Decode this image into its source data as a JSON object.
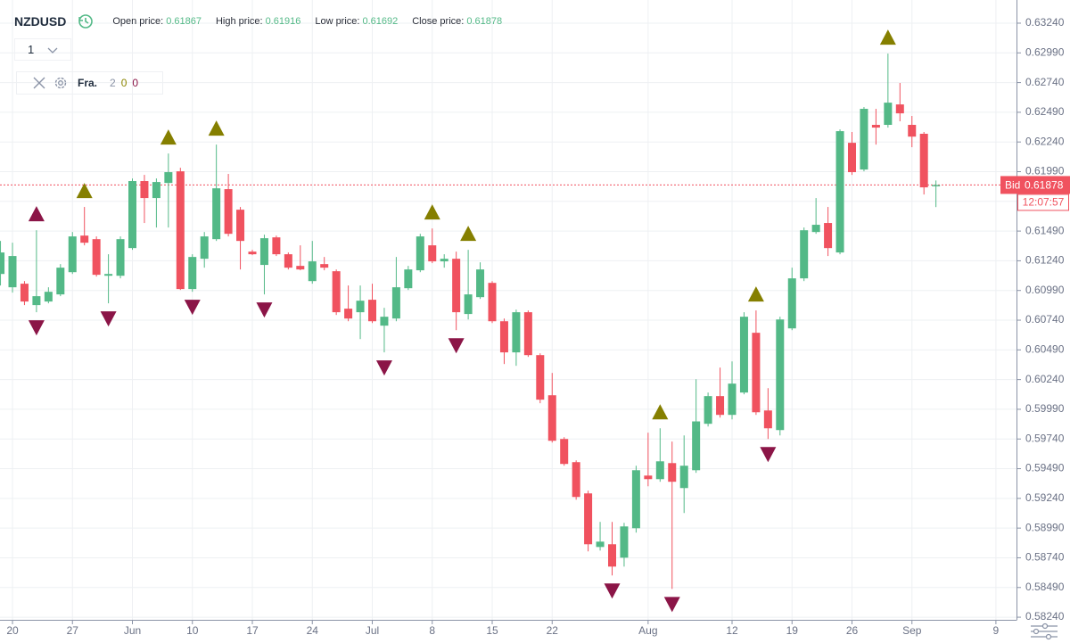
{
  "header": {
    "symbol": "NZDUSD",
    "open_label": "Open price:",
    "high_label": "High price:",
    "low_label": "Low price:",
    "close_label": "Close price:",
    "interval": "1"
  },
  "indicator": {
    "name": "Fra.",
    "params": [
      2,
      0,
      0
    ]
  },
  "chart_data": {
    "type": "candlestick",
    "categories": [
      null,
      "20",
      null,
      null,
      null,
      null,
      "27",
      null,
      null,
      null,
      null,
      "Jun",
      null,
      null,
      null,
      null,
      "10",
      null,
      null,
      null,
      null,
      "17",
      null,
      null,
      null,
      null,
      "24",
      null,
      null,
      null,
      null,
      "Jul",
      null,
      null,
      null,
      null,
      "8",
      null,
      null,
      null,
      null,
      "15",
      null,
      null,
      null,
      null,
      "22",
      null,
      null,
      null,
      null,
      null,
      null,
      null,
      "Aug",
      null,
      null,
      null,
      null,
      null,
      null,
      "12",
      null,
      null,
      null,
      null,
      "19",
      null,
      null,
      null,
      null,
      "26",
      null,
      null,
      null,
      null,
      "Sep",
      null,
      null,
      null,
      null,
      null,
      null,
      "9"
    ],
    "ohlc": [
      [
        0.61129,
        0.61407,
        0.61032,
        0.6131
      ],
      [
        0.61017,
        0.61392,
        0.60972,
        0.6128
      ],
      [
        0.61047,
        0.61069,
        0.60867,
        0.60897
      ],
      [
        0.60867,
        0.61497,
        0.60807,
        0.60942
      ],
      [
        0.60897,
        0.61017,
        0.60882,
        0.60979
      ],
      [
        0.60957,
        0.61212,
        0.60942,
        0.61182
      ],
      [
        0.61144,
        0.61482,
        0.61129,
        0.61445
      ],
      [
        0.61452,
        0.61693,
        0.6137,
        0.61392
      ],
      [
        0.61422,
        0.61445,
        0.61107,
        0.61122
      ],
      [
        0.61114,
        0.61295,
        0.60882,
        0.61129
      ],
      [
        0.61114,
        0.61445,
        0.61092,
        0.61422
      ],
      [
        0.61347,
        0.61933,
        0.61332,
        0.61911
      ],
      [
        0.61911,
        0.61963,
        0.61558,
        0.61768
      ],
      [
        0.61768,
        0.61933,
        0.6152,
        0.61903
      ],
      [
        0.61895,
        0.62143,
        0.6152,
        0.61986
      ],
      [
        0.61993,
        0.62023,
        0.60994,
        0.61002
      ],
      [
        0.61002,
        0.61295,
        0.60979,
        0.61272
      ],
      [
        0.61257,
        0.61482,
        0.61182,
        0.61445
      ],
      [
        0.61422,
        0.62218,
        0.61407,
        0.6185
      ],
      [
        0.61843,
        0.61971,
        0.61445,
        0.61467
      ],
      [
        0.6167,
        0.61693,
        0.61167,
        0.61407
      ],
      [
        0.61317,
        0.61332,
        0.61287,
        0.61295
      ],
      [
        0.61205,
        0.6146,
        0.60957,
        0.6143
      ],
      [
        0.61437,
        0.61452,
        0.6128,
        0.61295
      ],
      [
        0.61295,
        0.6131,
        0.61167,
        0.61182
      ],
      [
        0.61197,
        0.6137,
        0.6116,
        0.61167
      ],
      [
        0.61069,
        0.61407,
        0.61047,
        0.61235
      ],
      [
        0.61212,
        0.61272,
        0.6116,
        0.61182
      ],
      [
        0.61152,
        0.61167,
        0.60784,
        0.60807
      ],
      [
        0.60837,
        0.61032,
        0.60731,
        0.60754
      ],
      [
        0.60807,
        0.61032,
        0.60581,
        0.60904
      ],
      [
        0.60912,
        0.61047,
        0.60716,
        0.60731
      ],
      [
        0.60694,
        0.60844,
        0.60469,
        0.60769
      ],
      [
        0.60754,
        0.61272,
        0.60731,
        0.61017
      ],
      [
        0.61009,
        0.61197,
        0.60994,
        0.61167
      ],
      [
        0.6116,
        0.61467,
        0.61144,
        0.61445
      ],
      [
        0.6137,
        0.61512,
        0.6122,
        0.61235
      ],
      [
        0.61235,
        0.61295,
        0.61182,
        0.61257
      ],
      [
        0.61257,
        0.61317,
        0.60656,
        0.60807
      ],
      [
        0.60792,
        0.61332,
        0.60746,
        0.60957
      ],
      [
        0.60934,
        0.61227,
        0.60919,
        0.61167
      ],
      [
        0.61054,
        0.61069,
        0.60716,
        0.60731
      ],
      [
        0.60731,
        0.60754,
        0.60371,
        0.60469
      ],
      [
        0.60469,
        0.60829,
        0.60356,
        0.60807
      ],
      [
        0.60807,
        0.60822,
        0.60431,
        0.60446
      ],
      [
        0.60446,
        0.60461,
        0.60041,
        0.60071
      ],
      [
        0.60108,
        0.60296,
        0.5971,
        0.59725
      ],
      [
        0.5974,
        0.59755,
        0.59515,
        0.5953
      ],
      [
        0.59545,
        0.5956,
        0.59229,
        0.59252
      ],
      [
        0.59282,
        0.59305,
        0.58794,
        0.58854
      ],
      [
        0.58831,
        0.59042,
        0.58801,
        0.58876
      ],
      [
        0.58854,
        0.59042,
        0.58591,
        0.58666
      ],
      [
        0.58741,
        0.59034,
        0.58666,
        0.59004
      ],
      [
        0.58989,
        0.59515,
        0.58952,
        0.59477
      ],
      [
        0.59432,
        0.59793,
        0.59342,
        0.59402
      ],
      [
        0.59402,
        0.5983,
        0.5938,
        0.59552
      ],
      [
        0.59537,
        0.59718,
        0.58478,
        0.5938
      ],
      [
        0.59327,
        0.5977,
        0.59117,
        0.59515
      ],
      [
        0.59477,
        0.60243,
        0.59455,
        0.59888
      ],
      [
        0.59868,
        0.60131,
        0.59845,
        0.60101
      ],
      [
        0.60101,
        0.60341,
        0.5992,
        0.59943
      ],
      [
        0.59943,
        0.60393,
        0.59905,
        0.60206
      ],
      [
        0.60131,
        0.60807,
        0.60116,
        0.60769
      ],
      [
        0.60634,
        0.60822,
        0.59943,
        0.59965
      ],
      [
        0.5998,
        0.60168,
        0.5974,
        0.5983
      ],
      [
        0.59815,
        0.60769,
        0.5977,
        0.60746
      ],
      [
        0.60671,
        0.61182,
        0.60656,
        0.61092
      ],
      [
        0.61092,
        0.6152,
        0.61069,
        0.61497
      ],
      [
        0.61482,
        0.61768,
        0.61467,
        0.61543
      ],
      [
        0.61558,
        0.61693,
        0.6128,
        0.61347
      ],
      [
        0.6131,
        0.62346,
        0.61295,
        0.62331
      ],
      [
        0.62233,
        0.62324,
        0.61963,
        0.61986
      ],
      [
        0.62008,
        0.62534,
        0.61993,
        0.62519
      ],
      [
        0.62384,
        0.62519,
        0.62218,
        0.62361
      ],
      [
        0.62384,
        0.62984,
        0.62361,
        0.62571
      ],
      [
        0.62556,
        0.62737,
        0.62414,
        0.62481
      ],
      [
        0.62384,
        0.62459,
        0.62196,
        0.62285
      ],
      [
        0.62309,
        0.62324,
        0.61798,
        0.61858
      ],
      [
        0.61867,
        0.61916,
        0.61692,
        0.61878
      ],
      null,
      null,
      null,
      null,
      null
    ],
    "up_color": "#53b987",
    "down_color": "#f0525f",
    "fractals": [
      {
        "candle": 3,
        "direction": "up",
        "color": "#8b1547"
      },
      {
        "candle": 7,
        "direction": "up",
        "color": "#857f00"
      },
      {
        "candle": 14,
        "direction": "up",
        "color": "#857f00"
      },
      {
        "candle": 18,
        "direction": "up",
        "color": "#857f00"
      },
      {
        "candle": 36,
        "direction": "up",
        "color": "#857f00"
      },
      {
        "candle": 39,
        "direction": "up",
        "color": "#857f00"
      },
      {
        "candle": 55,
        "direction": "up",
        "color": "#857f00"
      },
      {
        "candle": 63,
        "direction": "up",
        "color": "#857f00"
      },
      {
        "candle": 74,
        "direction": "up",
        "color": "#857f00"
      },
      {
        "candle": 3,
        "direction": "down",
        "color": "#8b1547"
      },
      {
        "candle": 9,
        "direction": "down",
        "color": "#8b1547"
      },
      {
        "candle": 16,
        "direction": "down",
        "color": "#8b1547"
      },
      {
        "candle": 22,
        "direction": "down",
        "color": "#8b1547"
      },
      {
        "candle": 32,
        "direction": "down",
        "color": "#8b1547"
      },
      {
        "candle": 38,
        "direction": "down",
        "color": "#8b1547"
      },
      {
        "candle": 51,
        "direction": "down",
        "color": "#8b1547"
      },
      {
        "candle": 56,
        "direction": "down",
        "color": "#8b1547"
      },
      {
        "candle": 64,
        "direction": "down",
        "color": "#8b1547"
      }
    ],
    "ylim": [
      0.58218,
      0.63435
    ],
    "yticks": [
      {
        "value": 0.6324,
        "label": "0.63240"
      },
      {
        "value": 0.6299,
        "label": "0.62990"
      },
      {
        "value": 0.6274,
        "label": "0.62740"
      },
      {
        "value": 0.6249,
        "label": "0.62490"
      },
      {
        "value": 0.6224,
        "label": "0.62240"
      },
      {
        "value": 0.6199,
        "label": "0.61990"
      },
      {
        "value": 0.6174,
        "label": "0.61740"
      },
      {
        "value": 0.6149,
        "label": "0.61490"
      },
      {
        "value": 0.6124,
        "label": "0.61240"
      },
      {
        "value": 0.6099,
        "label": "0.60990"
      },
      {
        "value": 0.6074,
        "label": "0.60740"
      },
      {
        "value": 0.6049,
        "label": "0.60490"
      },
      {
        "value": 0.6024,
        "label": "0.60240"
      },
      {
        "value": 0.5999,
        "label": "0.59990"
      },
      {
        "value": 0.5974,
        "label": "0.59740"
      },
      {
        "value": 0.5949,
        "label": "0.59490"
      },
      {
        "value": 0.5924,
        "label": "0.59240"
      },
      {
        "value": 0.5899,
        "label": "0.58990"
      },
      {
        "value": 0.5874,
        "label": "0.58740"
      },
      {
        "value": 0.5849,
        "label": "0.58490"
      },
      {
        "value": 0.5824,
        "label": "0.58240"
      }
    ],
    "grid": true,
    "bid_label": "Bid",
    "countdown": "12:07:57"
  }
}
